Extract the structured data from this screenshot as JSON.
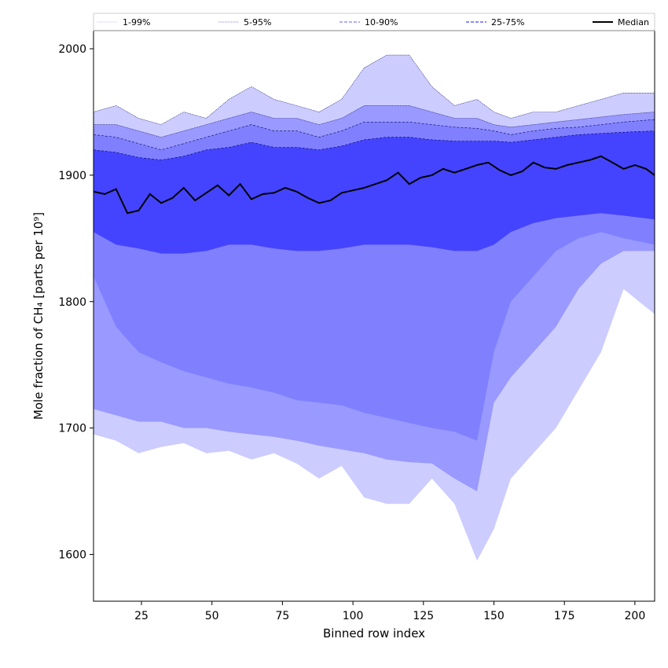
{
  "chart_data": {
    "type": "area",
    "xlabel": "Binned row index",
    "ylabel": "Mole fraction of CH₄ [parts per 10⁹]",
    "xlim": [
      8,
      207
    ],
    "ylim": [
      1563,
      2028
    ],
    "x_ticks": [
      25,
      50,
      75,
      100,
      125,
      150,
      175,
      200
    ],
    "y_ticks": [
      1600,
      1700,
      1800,
      1900,
      2000
    ],
    "x_tick_labels": [
      "25",
      "50",
      "75",
      "100",
      "125",
      "150",
      "175",
      "200"
    ],
    "y_tick_labels": [
      "1600",
      "1700",
      "1800",
      "1900",
      "2000"
    ],
    "legend_position": "top, full width",
    "legend": [
      {
        "label": "1-99%",
        "style": "dotted",
        "color": "#ccccff"
      },
      {
        "label": "5-95%",
        "style": "dotted",
        "color": "#9999ff"
      },
      {
        "label": "10-90%",
        "style": "dashed",
        "color": "#8080ff"
      },
      {
        "label": "25-75%",
        "style": "dashed",
        "color": "#4444ff"
      },
      {
        "label": "Median",
        "style": "solid",
        "color": "#000000"
      }
    ],
    "x": [
      8,
      16,
      24,
      32,
      40,
      48,
      56,
      64,
      72,
      80,
      88,
      96,
      104,
      112,
      120,
      128,
      136,
      144,
      150,
      156,
      164,
      172,
      180,
      188,
      196,
      207
    ],
    "bands": [
      {
        "name": "1-99%",
        "color": "#ccccff",
        "lower": [
          1695,
          1690,
          1680,
          1685,
          1688,
          1680,
          1682,
          1675,
          1680,
          1672,
          1660,
          1670,
          1645,
          1640,
          1640,
          1660,
          1640,
          1595,
          1620,
          1660,
          1680,
          1700,
          1730,
          1760,
          1810,
          1790
        ],
        "upper": [
          1950,
          1955,
          1945,
          1940,
          1950,
          1945,
          1960,
          1970,
          1960,
          1955,
          1950,
          1960,
          1985,
          1995,
          1995,
          1970,
          1955,
          1960,
          1950,
          1945,
          1950,
          1950,
          1955,
          1960,
          1965,
          1965
        ]
      },
      {
        "name": "5-95%",
        "color": "#9999ff",
        "lower": [
          1715,
          1710,
          1705,
          1705,
          1700,
          1700,
          1697,
          1695,
          1693,
          1690,
          1686,
          1683,
          1680,
          1675,
          1673,
          1672,
          1660,
          1650,
          1720,
          1740,
          1760,
          1780,
          1810,
          1830,
          1840,
          1840
        ],
        "upper": [
          1940,
          1940,
          1935,
          1930,
          1935,
          1940,
          1945,
          1950,
          1945,
          1945,
          1940,
          1945,
          1955,
          1955,
          1955,
          1950,
          1945,
          1945,
          1940,
          1938,
          1940,
          1942,
          1944,
          1946,
          1948,
          1950
        ]
      },
      {
        "name": "10-90%",
        "color": "#8080ff",
        "lower": [
          1820,
          1780,
          1760,
          1752,
          1745,
          1740,
          1735,
          1732,
          1728,
          1722,
          1720,
          1718,
          1712,
          1708,
          1704,
          1700,
          1697,
          1690,
          1760,
          1800,
          1820,
          1840,
          1850,
          1855,
          1850,
          1845
        ],
        "upper": [
          1932,
          1930,
          1925,
          1920,
          1925,
          1930,
          1935,
          1940,
          1935,
          1935,
          1930,
          1935,
          1942,
          1942,
          1942,
          1940,
          1938,
          1937,
          1935,
          1932,
          1935,
          1937,
          1938,
          1940,
          1942,
          1944
        ]
      },
      {
        "name": "25-75%",
        "color": "#4444ff",
        "lower": [
          1855,
          1845,
          1842,
          1838,
          1838,
          1840,
          1845,
          1845,
          1842,
          1840,
          1840,
          1842,
          1845,
          1845,
          1845,
          1843,
          1840,
          1840,
          1845,
          1855,
          1862,
          1866,
          1868,
          1870,
          1868,
          1865
        ],
        "upper": [
          1920,
          1918,
          1914,
          1912,
          1915,
          1920,
          1922,
          1926,
          1922,
          1922,
          1920,
          1923,
          1928,
          1930,
          1930,
          1928,
          1927,
          1927,
          1927,
          1926,
          1928,
          1930,
          1932,
          1933,
          1934,
          1935
        ]
      }
    ],
    "series": [
      {
        "name": "Median",
        "color": "#000000",
        "x": [
          8,
          12,
          16,
          20,
          24,
          28,
          32,
          36,
          40,
          44,
          48,
          52,
          56,
          60,
          64,
          68,
          72,
          76,
          80,
          84,
          88,
          92,
          96,
          100,
          104,
          108,
          112,
          116,
          120,
          124,
          128,
          132,
          136,
          140,
          144,
          148,
          152,
          156,
          160,
          164,
          168,
          172,
          176,
          180,
          184,
          188,
          192,
          196,
          200,
          204,
          207
        ],
        "values": [
          1887,
          1885,
          1889,
          1870,
          1872,
          1885,
          1878,
          1882,
          1890,
          1880,
          1886,
          1892,
          1884,
          1893,
          1881,
          1885,
          1886,
          1890,
          1887,
          1882,
          1878,
          1880,
          1886,
          1888,
          1890,
          1893,
          1896,
          1902,
          1893,
          1898,
          1900,
          1905,
          1902,
          1905,
          1908,
          1910,
          1904,
          1900,
          1903,
          1910,
          1906,
          1905,
          1908,
          1910,
          1912,
          1915,
          1910,
          1905,
          1908,
          1905,
          1900
        ]
      }
    ]
  }
}
